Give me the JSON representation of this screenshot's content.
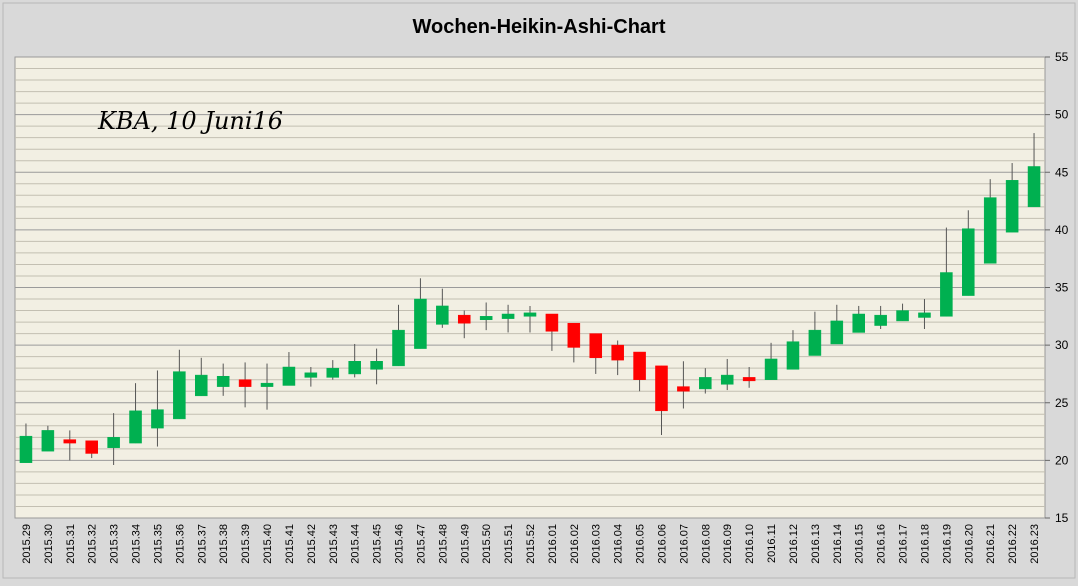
{
  "chart_data": {
    "type": "candlestick",
    "title": "Wochen-Heikin-Ashi-Chart",
    "annotation": "KBA, 10 Juni16",
    "y_ticks": [
      15,
      20,
      25,
      30,
      35,
      40,
      45,
      50,
      55
    ],
    "ylim": [
      15,
      55
    ],
    "y_axis_position": "right",
    "grid": true,
    "colors": {
      "up": "#00b050",
      "down": "#ff0000",
      "background": "#f2efe3",
      "grid": "#b0b0b0",
      "frame": "#d9d9d9"
    },
    "categories": [
      "2015.29",
      "2015.30",
      "2015.31",
      "2015.32",
      "2015.33",
      "2015.34",
      "2015.35",
      "2015.36",
      "2015.37",
      "2015.38",
      "2015.39",
      "2015.40",
      "2015.41",
      "2015.42",
      "2015.43",
      "2015.44",
      "2015.45",
      "2015.46",
      "2015.47",
      "2015.48",
      "2015.49",
      "2015.50",
      "2015.51",
      "2015.52",
      "2016.01",
      "2016.02",
      "2016.03",
      "2016.04",
      "2016.05",
      "2016.06",
      "2016.07",
      "2016.08",
      "2016.09",
      "2016.10",
      "2016.11",
      "2016.12",
      "2016.13",
      "2016.14",
      "2016.15",
      "2016.16",
      "2016.17",
      "2016.18",
      "2016.19",
      "2016.20",
      "2016.21",
      "2016.22",
      "2016.23"
    ],
    "candles": [
      {
        "open": 19.8,
        "close": 22.1,
        "high": 23.2,
        "low": 19.8
      },
      {
        "open": 20.8,
        "close": 22.6,
        "high": 23.0,
        "low": 20.8
      },
      {
        "open": 21.8,
        "close": 21.5,
        "high": 22.6,
        "low": 20.0
      },
      {
        "open": 21.7,
        "close": 20.6,
        "high": 21.7,
        "low": 20.2
      },
      {
        "open": 21.1,
        "close": 22.0,
        "high": 24.1,
        "low": 19.6
      },
      {
        "open": 21.5,
        "close": 24.3,
        "high": 26.7,
        "low": 21.5
      },
      {
        "open": 22.8,
        "close": 24.4,
        "high": 27.8,
        "low": 21.2
      },
      {
        "open": 23.6,
        "close": 27.7,
        "high": 29.6,
        "low": 23.6
      },
      {
        "open": 25.6,
        "close": 27.4,
        "high": 28.9,
        "low": 25.6
      },
      {
        "open": 26.4,
        "close": 27.3,
        "high": 28.4,
        "low": 25.6
      },
      {
        "open": 27.0,
        "close": 26.4,
        "high": 28.5,
        "low": 24.6
      },
      {
        "open": 26.4,
        "close": 26.7,
        "high": 28.4,
        "low": 24.4
      },
      {
        "open": 26.5,
        "close": 28.1,
        "high": 29.4,
        "low": 26.5
      },
      {
        "open": 27.2,
        "close": 27.6,
        "high": 28.1,
        "low": 26.4
      },
      {
        "open": 27.2,
        "close": 28.0,
        "high": 28.7,
        "low": 27.0
      },
      {
        "open": 27.5,
        "close": 28.6,
        "high": 30.1,
        "low": 27.2
      },
      {
        "open": 27.9,
        "close": 28.6,
        "high": 29.7,
        "low": 26.6
      },
      {
        "open": 28.2,
        "close": 31.3,
        "high": 33.5,
        "low": 28.2
      },
      {
        "open": 29.7,
        "close": 34.0,
        "high": 35.8,
        "low": 29.7
      },
      {
        "open": 31.8,
        "close": 33.4,
        "high": 34.9,
        "low": 31.5
      },
      {
        "open": 32.6,
        "close": 31.9,
        "high": 33.0,
        "low": 30.6
      },
      {
        "open": 32.2,
        "close": 32.5,
        "high": 33.7,
        "low": 31.3
      },
      {
        "open": 32.3,
        "close": 32.7,
        "high": 33.5,
        "low": 31.1
      },
      {
        "open": 32.5,
        "close": 32.8,
        "high": 33.4,
        "low": 31.1
      },
      {
        "open": 32.7,
        "close": 31.2,
        "high": 32.7,
        "low": 29.5
      },
      {
        "open": 31.9,
        "close": 29.8,
        "high": 31.9,
        "low": 28.5
      },
      {
        "open": 31.0,
        "close": 28.9,
        "high": 31.0,
        "low": 27.5
      },
      {
        "open": 30.0,
        "close": 28.7,
        "high": 30.4,
        "low": 27.4
      },
      {
        "open": 29.4,
        "close": 27.0,
        "high": 29.4,
        "low": 26.0
      },
      {
        "open": 28.2,
        "close": 24.3,
        "high": 28.2,
        "low": 22.2
      },
      {
        "open": 26.4,
        "close": 26.0,
        "high": 28.6,
        "low": 24.5
      },
      {
        "open": 26.2,
        "close": 27.2,
        "high": 28.0,
        "low": 25.8
      },
      {
        "open": 26.6,
        "close": 27.4,
        "high": 28.8,
        "low": 26.1
      },
      {
        "open": 27.2,
        "close": 26.9,
        "high": 28.1,
        "low": 26.3
      },
      {
        "open": 27.0,
        "close": 28.8,
        "high": 30.2,
        "low": 27.0
      },
      {
        "open": 27.9,
        "close": 30.3,
        "high": 31.3,
        "low": 27.9
      },
      {
        "open": 29.1,
        "close": 31.3,
        "high": 32.9,
        "low": 29.1
      },
      {
        "open": 30.1,
        "close": 32.1,
        "high": 33.5,
        "low": 30.1
      },
      {
        "open": 31.1,
        "close": 32.7,
        "high": 33.4,
        "low": 31.1
      },
      {
        "open": 31.7,
        "close": 32.6,
        "high": 33.4,
        "low": 31.4
      },
      {
        "open": 32.1,
        "close": 33.0,
        "high": 33.6,
        "low": 32.1
      },
      {
        "open": 32.4,
        "close": 32.8,
        "high": 34.0,
        "low": 31.4
      },
      {
        "open": 32.5,
        "close": 36.3,
        "high": 40.2,
        "low": 32.5
      },
      {
        "open": 34.3,
        "close": 40.1,
        "high": 41.7,
        "low": 34.3
      },
      {
        "open": 37.1,
        "close": 42.8,
        "high": 44.4,
        "low": 37.1
      },
      {
        "open": 39.8,
        "close": 44.3,
        "high": 45.8,
        "low": 39.8
      },
      {
        "open": 42.0,
        "close": 45.5,
        "high": 48.4,
        "low": 42.0
      }
    ]
  }
}
